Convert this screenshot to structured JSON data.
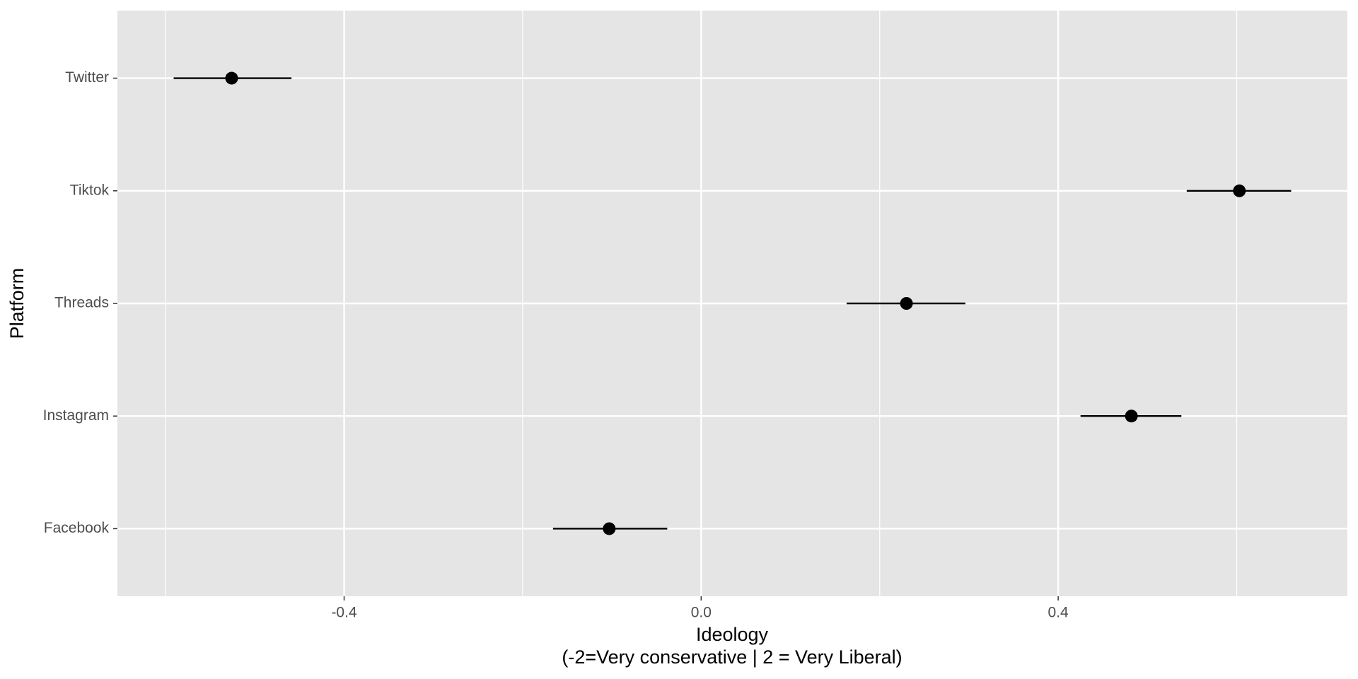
{
  "chart_data": {
    "type": "pointrange",
    "x_label": "Ideology\n(-2=Very conservative | 2 = Very Liberal)",
    "y_label": "Platform",
    "categories": [
      "Facebook",
      "Instagram",
      "Threads",
      "Tiktok",
      "Twitter"
    ],
    "values": [
      -0.103,
      0.482,
      0.23,
      0.603,
      -0.526
    ],
    "lower": [
      -0.166,
      0.425,
      0.163,
      0.544,
      -0.591
    ],
    "upper": [
      -0.038,
      0.538,
      0.296,
      0.661,
      -0.459
    ],
    "color": "#000000",
    "xlim": [
      -0.654,
      0.724
    ],
    "xticks": [
      {
        "value": -0.4,
        "label": "-0.4"
      },
      {
        "value": 0,
        "label": "0.0"
      },
      {
        "value": 0.4,
        "label": "0.4"
      }
    ],
    "xminorticks": [
      -0.6,
      -0.2,
      0.2,
      0.6
    ],
    "grid": true
  }
}
